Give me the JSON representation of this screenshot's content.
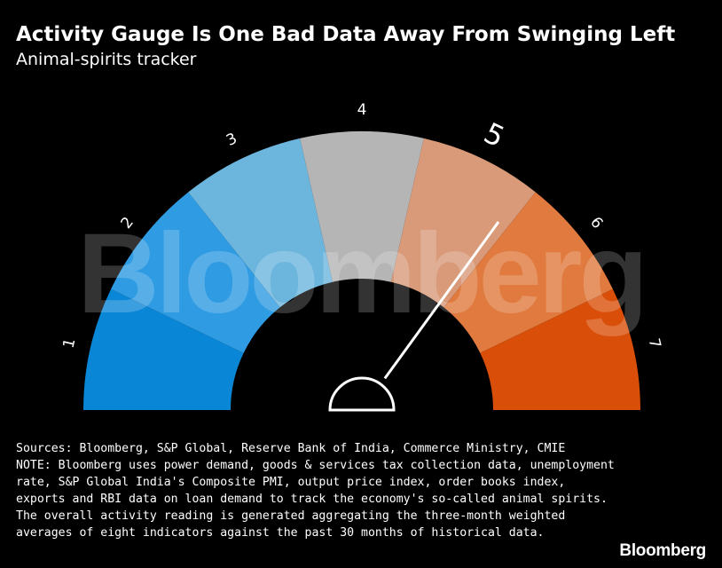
{
  "title": "Activity Gauge Is One Bad Data Away From Swinging Left",
  "subtitle": "Animal-spirits tracker",
  "watermark": "Bloomberg",
  "chart_data": {
    "type": "gauge",
    "scale": [
      "1",
      "2",
      "3",
      "4",
      "5",
      "6",
      "7"
    ],
    "segments": [
      {
        "color": "#0a86d6"
      },
      {
        "color": "#2f9be3"
      },
      {
        "color": "#6cb6de"
      },
      {
        "color": "#b5b5b5"
      },
      {
        "color": "#d99a7a"
      },
      {
        "color": "#e07a3e"
      },
      {
        "color": "#d94f09"
      }
    ],
    "highlighted_label": "5",
    "needle_value": 4.9,
    "range": [
      0,
      7
    ]
  },
  "footnote": {
    "sources": "Sources: Bloomberg, S&P Global, Reserve Bank of India, Commerce Ministry, CMIE",
    "note": "NOTE: Bloomberg uses power demand, goods & services tax collection data, unemployment rate, S&P Global India's Composite PMI, output price index, order books index, exports and RBI data on loan demand to track the economy's so-called animal spirits. The overall activity reading is generated aggregating the three-month weighted averages of eight indicators against the past 30 months of historical data."
  },
  "brand": "Bloomberg"
}
